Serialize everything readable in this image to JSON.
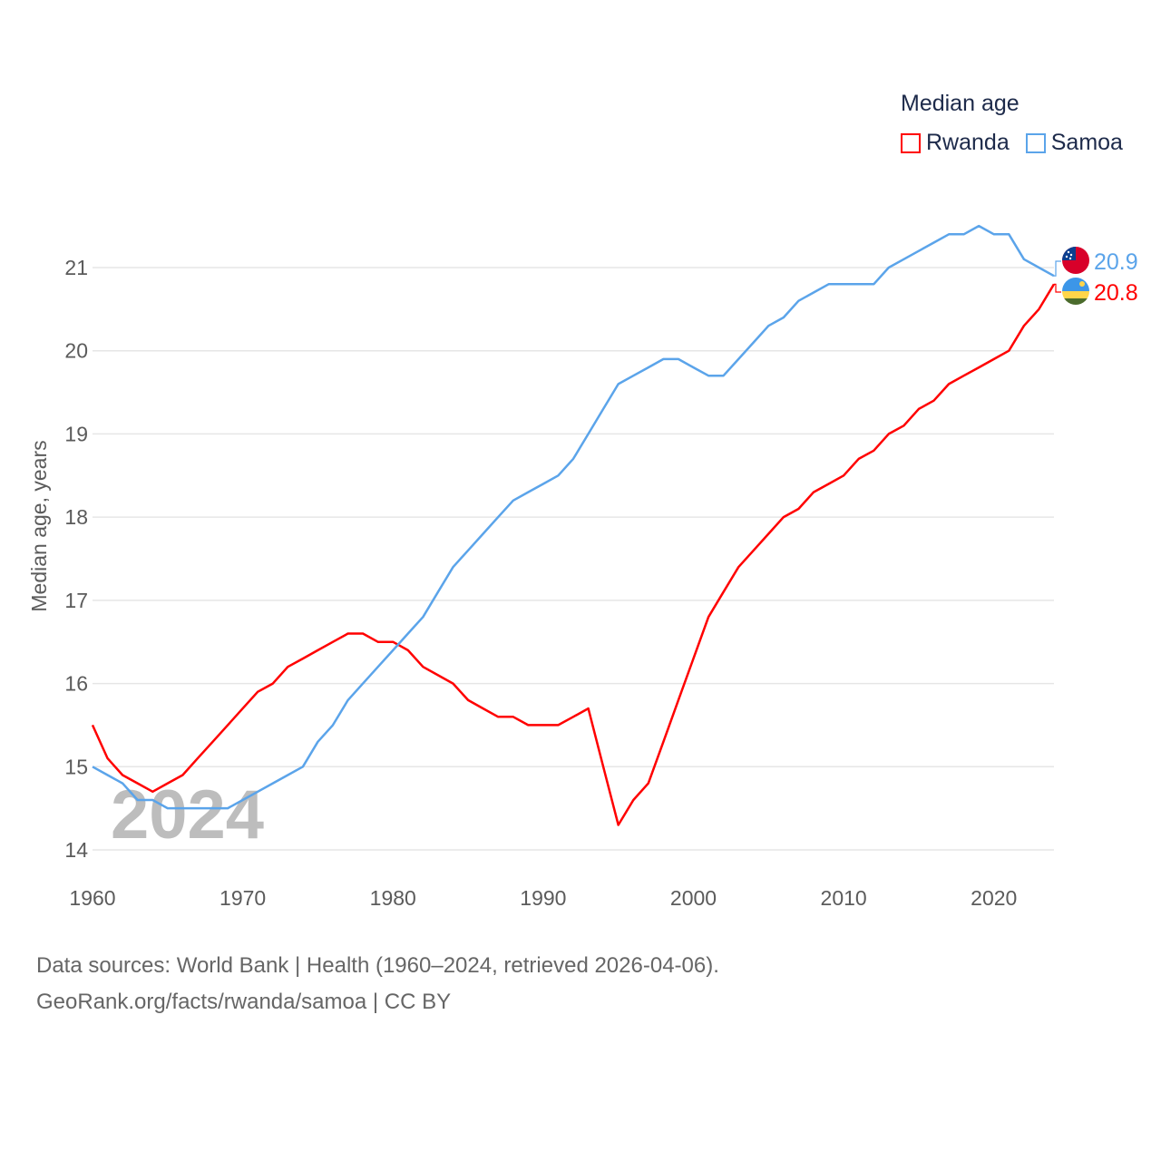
{
  "chart_data": {
    "type": "line",
    "title": "Median age",
    "xlabel": "",
    "ylabel": "Median age, years",
    "xlim": [
      1960,
      2024
    ],
    "ylim": [
      14,
      21.6
    ],
    "yticks": [
      14,
      15,
      16,
      17,
      18,
      19,
      20,
      21
    ],
    "xticks": [
      1960,
      1970,
      1980,
      1990,
      2000,
      2010,
      2020
    ],
    "grid": true,
    "legend_placement": "top-right",
    "year_watermark": "2024",
    "x": [
      1960,
      1961,
      1962,
      1963,
      1964,
      1965,
      1966,
      1967,
      1968,
      1969,
      1970,
      1971,
      1972,
      1973,
      1974,
      1975,
      1976,
      1977,
      1978,
      1979,
      1980,
      1981,
      1982,
      1983,
      1984,
      1985,
      1986,
      1987,
      1988,
      1989,
      1990,
      1991,
      1992,
      1993,
      1994,
      1995,
      1996,
      1997,
      1998,
      1999,
      2000,
      2001,
      2002,
      2003,
      2004,
      2005,
      2006,
      2007,
      2008,
      2009,
      2010,
      2011,
      2012,
      2013,
      2014,
      2015,
      2016,
      2017,
      2018,
      2019,
      2020,
      2021,
      2022,
      2023,
      2024
    ],
    "series": [
      {
        "name": "Rwanda",
        "color": "#ff0000",
        "end_label": "20.8",
        "flag": "rwanda-flag",
        "values": [
          15.5,
          15.1,
          14.9,
          14.8,
          14.7,
          14.8,
          14.9,
          15.1,
          15.3,
          15.5,
          15.7,
          15.9,
          16.0,
          16.2,
          16.3,
          16.4,
          16.5,
          16.6,
          16.6,
          16.5,
          16.5,
          16.4,
          16.2,
          16.1,
          16.0,
          15.8,
          15.7,
          15.6,
          15.6,
          15.5,
          15.5,
          15.5,
          15.6,
          15.7,
          15.0,
          14.3,
          14.6,
          14.8,
          15.3,
          15.8,
          16.3,
          16.8,
          17.1,
          17.4,
          17.6,
          17.8,
          18.0,
          18.1,
          18.3,
          18.4,
          18.5,
          18.7,
          18.8,
          19.0,
          19.1,
          19.3,
          19.4,
          19.6,
          19.7,
          19.8,
          19.9,
          20.0,
          20.3,
          20.5,
          20.8
        ]
      },
      {
        "name": "Samoa",
        "color": "#5ba4ea",
        "end_label": "20.9",
        "flag": "samoa-flag",
        "values": [
          15.0,
          14.9,
          14.8,
          14.6,
          14.6,
          14.5,
          14.5,
          14.5,
          14.5,
          14.5,
          14.6,
          14.7,
          14.8,
          14.9,
          15.0,
          15.3,
          15.5,
          15.8,
          16.0,
          16.2,
          16.4,
          16.6,
          16.8,
          17.1,
          17.4,
          17.6,
          17.8,
          18.0,
          18.2,
          18.3,
          18.4,
          18.5,
          18.7,
          19.0,
          19.3,
          19.6,
          19.7,
          19.8,
          19.9,
          19.9,
          19.8,
          19.7,
          19.7,
          19.9,
          20.1,
          20.3,
          20.4,
          20.6,
          20.7,
          20.8,
          20.8,
          20.8,
          20.8,
          21.0,
          21.1,
          21.2,
          21.3,
          21.4,
          21.4,
          21.5,
          21.4,
          21.4,
          21.1,
          21.0,
          20.9
        ]
      }
    ]
  },
  "footer": {
    "line1": "Data sources: World Bank | Health (1960–2024, retrieved 2026-04-06).",
    "line2": "GeoRank.org/facts/rwanda/samoa | CC BY"
  }
}
